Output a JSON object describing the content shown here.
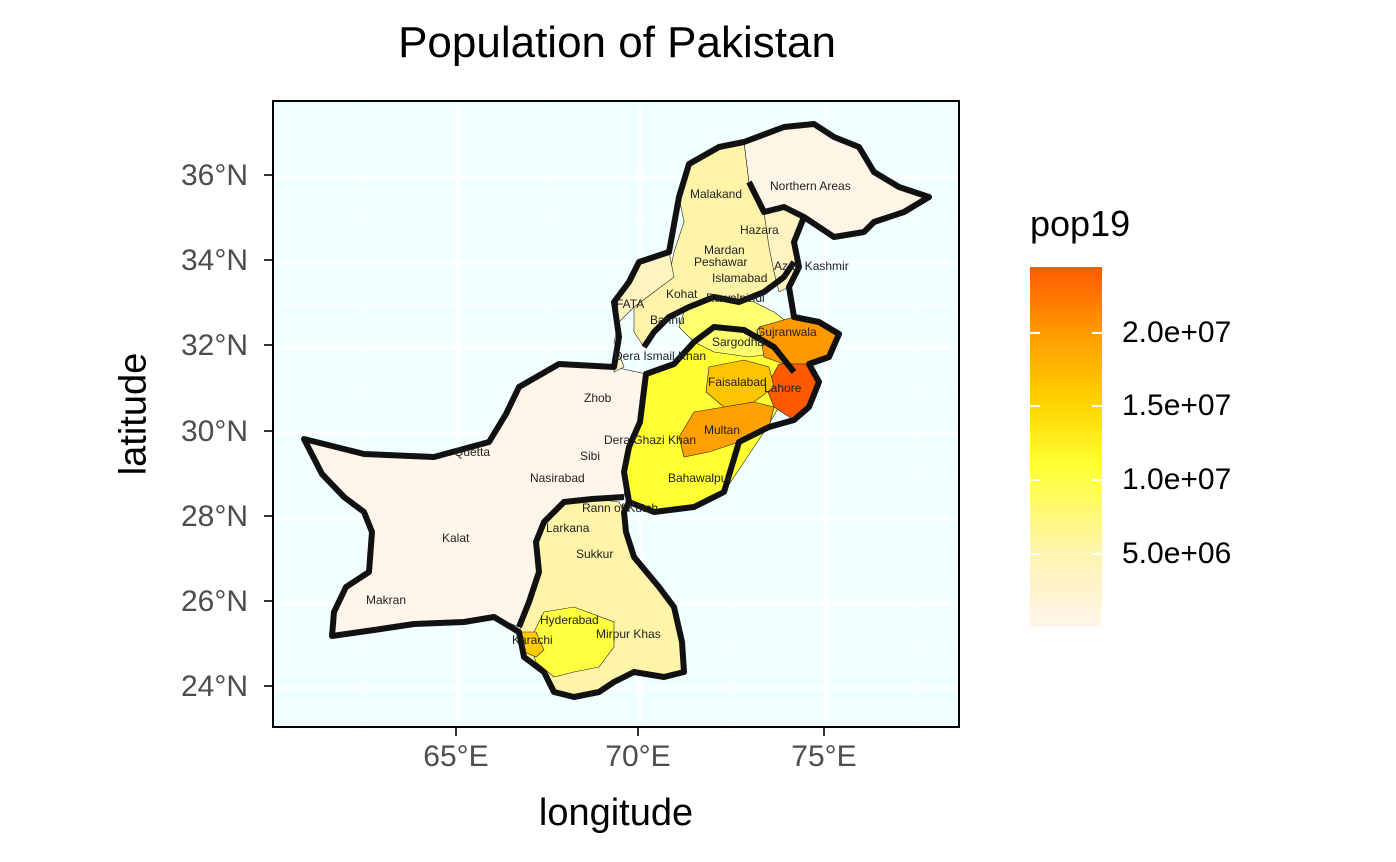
{
  "title": "Population of Pakistan",
  "axes": {
    "xlabel": "longitude",
    "ylabel": "latitude",
    "xticks": [
      "65°E",
      "70°E",
      "75°E"
    ],
    "yticks": [
      "36°N",
      "34°N",
      "32°N",
      "30°N",
      "28°N",
      "26°N",
      "24°N"
    ]
  },
  "legend": {
    "title": "pop19",
    "labels": [
      "2.0e+07",
      "1.5e+07",
      "1.0e+07",
      "5.0e+06"
    ]
  },
  "colors": {
    "panel_bg": "#f0ffff",
    "low": "#fff5eb",
    "mid": "#ffff33",
    "high": "#ff5a00",
    "border": "#111111"
  },
  "regions": [
    {
      "name": "Malakand",
      "fill": "#fff4a8"
    },
    {
      "name": "Northern Areas",
      "fill": "#fff5e6"
    },
    {
      "name": "Hazara",
      "fill": "#fff4a8"
    },
    {
      "name": "Mardan",
      "fill": "#fff4a8"
    },
    {
      "name": "Peshawar",
      "fill": "#fff4a8"
    },
    {
      "name": "Islamabad",
      "fill": "#fff4c0"
    },
    {
      "name": "Azad Kashmir",
      "fill": "#fff4c0"
    },
    {
      "name": "Kohat",
      "fill": "#fff4c0"
    },
    {
      "name": "Rawalpindi",
      "fill": "#ffff70"
    },
    {
      "name": "FATA",
      "fill": "#fff4c0"
    },
    {
      "name": "Bannu",
      "fill": "#fff4c0"
    },
    {
      "name": "Gujranwala",
      "fill": "#ff9900"
    },
    {
      "name": "Sargodha",
      "fill": "#ffff55"
    },
    {
      "name": "Dera Ismail Khan",
      "fill": "#fff4a8"
    },
    {
      "name": "Faisalabad",
      "fill": "#ffc400"
    },
    {
      "name": "Lahore",
      "fill": "#ff5a00"
    },
    {
      "name": "Zhob",
      "fill": "#fff5eb"
    },
    {
      "name": "Dera Ghazi Khan",
      "fill": "#ffff33"
    },
    {
      "name": "Multan",
      "fill": "#ff9f00"
    },
    {
      "name": "Quetta",
      "fill": "#fff5eb"
    },
    {
      "name": "Sibi",
      "fill": "#fff5eb"
    },
    {
      "name": "Nasirabad",
      "fill": "#fff5eb"
    },
    {
      "name": "Bahawalpur",
      "fill": "#ffff33"
    },
    {
      "name": "Rann of Kutch",
      "fill": "#fff4a8"
    },
    {
      "name": "Larkana",
      "fill": "#fff4a8"
    },
    {
      "name": "Kalat",
      "fill": "#fff5eb"
    },
    {
      "name": "Sukkur",
      "fill": "#fff4a8"
    },
    {
      "name": "Makran",
      "fill": "#fff5eb"
    },
    {
      "name": "Hyderabad",
      "fill": "#ffff40"
    },
    {
      "name": "Karachi",
      "fill": "#ffcc00"
    },
    {
      "name": "Mirpur Khas",
      "fill": "#fff4a8"
    }
  ]
}
